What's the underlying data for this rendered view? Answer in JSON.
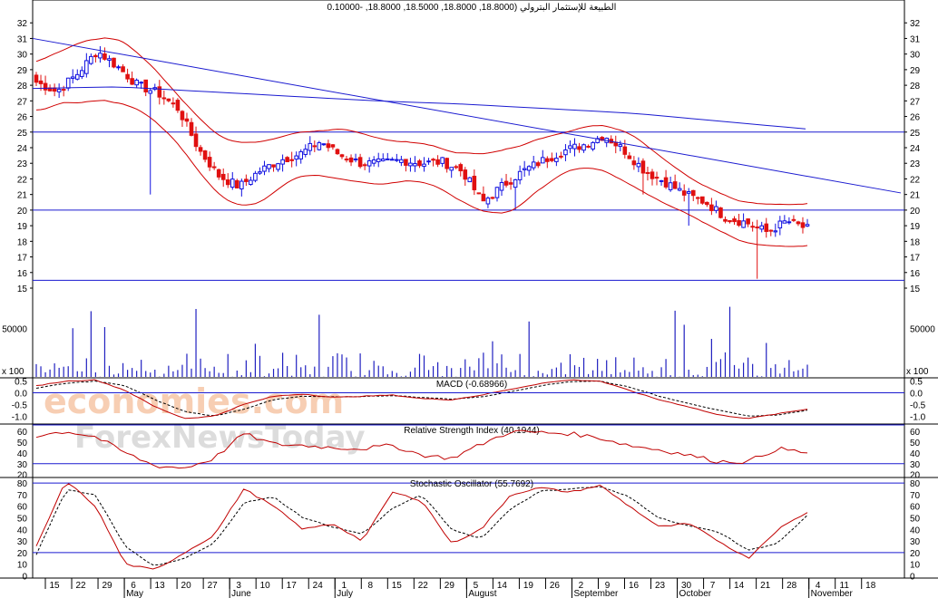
{
  "watermark": {
    "line1": "economies.com",
    "line2": "ForexNewsToday"
  },
  "colors": {
    "up": "#1010e0",
    "down": "#e01010",
    "band": "#d00000",
    "trend": "#1a1ad0",
    "grid": "#1a1ad0",
    "volume": "#2020c0",
    "signal": "#000000",
    "oscillator": "#c00000"
  },
  "chart_data": [
    {
      "type": "candlestick",
      "title": "الطبيعة للإستثمار البترولي (18.8000, 18.8000, 18.5000, 18.8000, -0.10000",
      "y_ticks": [
        "16",
        "17",
        "18",
        "19",
        "20",
        "21",
        "22",
        "23",
        "24",
        "25",
        "26",
        "27",
        "28",
        "29",
        "30",
        "31",
        "32"
      ],
      "extra_y_ticks": [
        "15"
      ],
      "ylim": [
        15,
        33
      ],
      "horizontal_levels": [
        25,
        20,
        15.5
      ],
      "x_day_labels": [
        "15",
        "22",
        "29",
        "6",
        "13",
        "20",
        "27",
        "3",
        "10",
        "17",
        "24",
        "1",
        "8",
        "15",
        "22",
        "29",
        "5",
        "14",
        "19",
        "26",
        "2",
        "9",
        "16",
        "23",
        "30",
        "7",
        "14",
        "21",
        "28",
        "4",
        "11",
        "18"
      ],
      "x_month_labels": [
        "May",
        "June",
        "July",
        "August",
        "September",
        "October",
        "November"
      ],
      "ohlc_sample_note": "",
      "anchors_close": [
        28.2,
        27.6,
        28.7,
        30.2,
        29.2,
        28.0,
        27.5,
        26.5,
        23.9,
        22.2,
        21.5,
        22.5,
        23.2,
        23.6,
        24.4,
        23.5,
        23.0,
        23.0,
        23.2,
        23.0,
        23.1,
        22.5,
        20.5,
        21.6,
        22.5,
        23.2,
        23.8,
        24.2,
        24.8,
        23.8,
        22.5,
        21.8,
        21.0,
        20.5,
        19.5,
        19.2,
        18.6,
        19.3,
        18.8
      ],
      "volume_ticks": [
        "50000"
      ],
      "volume_unit": "x 100"
    },
    {
      "type": "line",
      "title": "MACD (-0.68966)",
      "y_ticks": [
        "0.0",
        "-0.5",
        "-1.0"
      ],
      "extra_y_ticks": [
        "0.5"
      ],
      "ylim": [
        -1.3,
        0.6
      ],
      "macd_anchors": [
        0.3,
        0.5,
        0.55,
        0.1,
        -0.6,
        -1.1,
        -1.0,
        -0.5,
        -0.15,
        -0.05,
        -0.2,
        -0.15,
        -0.1,
        -0.25,
        -0.3,
        -0.1,
        0.15,
        0.4,
        0.55,
        0.5,
        0.1,
        -0.3,
        -0.6,
        -0.95,
        -1.1,
        -0.9,
        -0.7
      ],
      "signal_anchors": [
        0.2,
        0.4,
        0.5,
        0.3,
        -0.3,
        -0.8,
        -1.0,
        -0.7,
        -0.3,
        -0.15,
        -0.18,
        -0.16,
        -0.12,
        -0.2,
        -0.27,
        -0.18,
        0.05,
        0.3,
        0.48,
        0.5,
        0.25,
        -0.15,
        -0.45,
        -0.75,
        -1.0,
        -0.95,
        -0.75
      ]
    },
    {
      "type": "line",
      "title": "Relative Strength Index (40.1944)",
      "y_ticks": [
        "20",
        "30",
        "40",
        "50",
        "60"
      ],
      "ylim": [
        18,
        66
      ],
      "levels": [
        30,
        66
      ],
      "rsi_anchors": [
        56,
        60,
        55,
        40,
        28,
        26,
        35,
        58,
        48,
        47,
        45,
        44,
        47,
        38,
        35,
        48,
        60,
        59,
        58,
        54,
        47,
        43,
        38,
        32,
        32,
        44,
        40
      ]
    },
    {
      "type": "line",
      "title": "Stochastic Oscillator (55.7692)",
      "y_ticks": [
        "0",
        "10",
        "20",
        "30",
        "40",
        "50",
        "60",
        "70",
        "80"
      ],
      "ylim": [
        -2,
        84
      ],
      "levels": [
        20,
        80
      ],
      "k_anchors": [
        25,
        82,
        60,
        10,
        5,
        20,
        35,
        75,
        60,
        40,
        45,
        30,
        72,
        65,
        28,
        40,
        70,
        76,
        72,
        78,
        60,
        42,
        45,
        30,
        15,
        40,
        55
      ],
      "d_anchors": [
        18,
        74,
        70,
        25,
        8,
        15,
        28,
        63,
        68,
        50,
        42,
        36,
        58,
        70,
        40,
        32,
        58,
        73,
        75,
        77,
        68,
        50,
        43,
        38,
        22,
        28,
        52
      ]
    }
  ]
}
